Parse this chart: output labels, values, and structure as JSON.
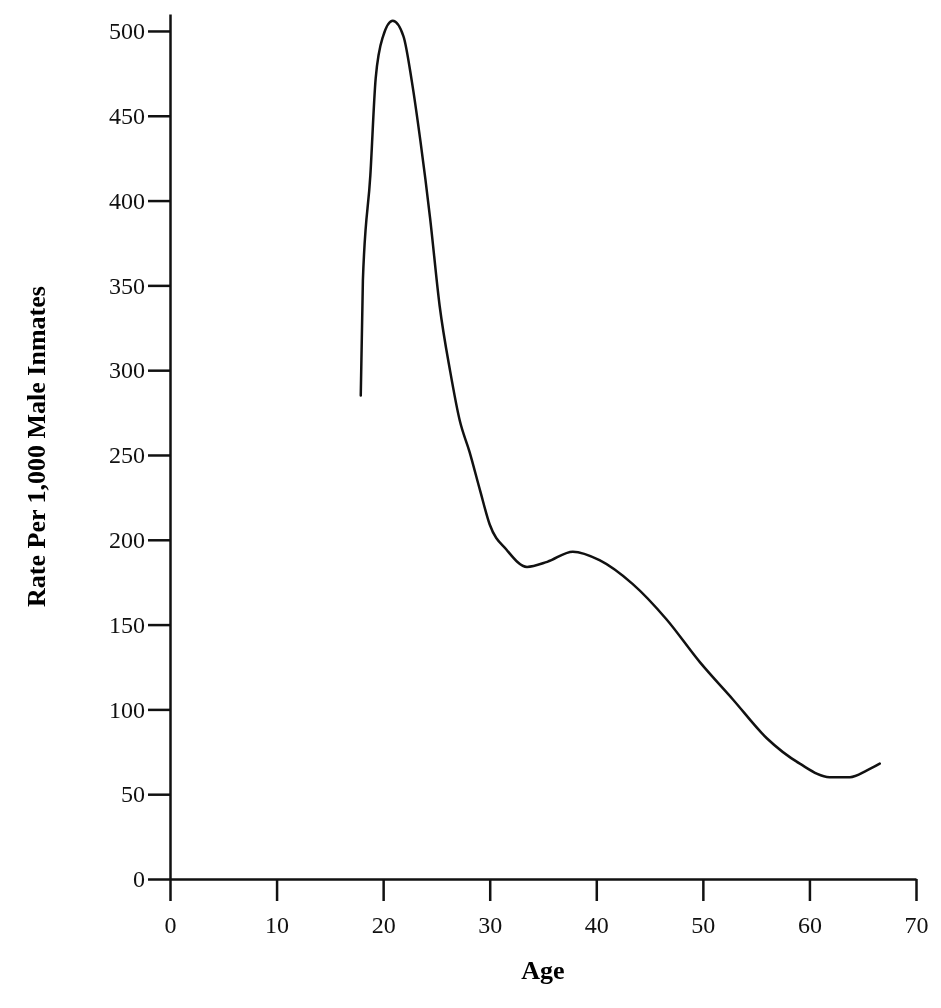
{
  "chart_data": {
    "type": "line",
    "xlabel": "Age",
    "ylabel": "Rate Per 1,000 Male Inmates",
    "xlim": [
      0,
      70
    ],
    "ylim": [
      0,
      510
    ],
    "xticks": [
      0,
      10,
      20,
      30,
      40,
      50,
      60,
      70
    ],
    "yticks": [
      0,
      50,
      100,
      150,
      200,
      250,
      300,
      350,
      400,
      450,
      500
    ],
    "grid": false,
    "marker": "none",
    "line_style": "solid",
    "series": [
      {
        "color": "#111111",
        "x": [
          17.9,
          18.1,
          18.8,
          19.3,
          20.0,
          20.9,
          21.9,
          22.7,
          23.5,
          24.4,
          25.3,
          26.3,
          27.2,
          28.1,
          29.1,
          30.0,
          31.6,
          33.5,
          35.4,
          37.8,
          40.3,
          43.4,
          46.6,
          49.7,
          52.8,
          56.0,
          59.1,
          61.9,
          63.8,
          65.4,
          66.6
        ],
        "values": [
          285,
          353,
          415,
          472,
          497,
          506,
          497,
          470,
          435,
          390,
          338,
          299,
          270,
          252,
          229,
          209,
          194,
          184,
          187,
          193,
          188,
          174,
          153,
          128,
          106,
          83,
          68,
          60,
          60,
          64,
          68
        ]
      }
    ]
  }
}
